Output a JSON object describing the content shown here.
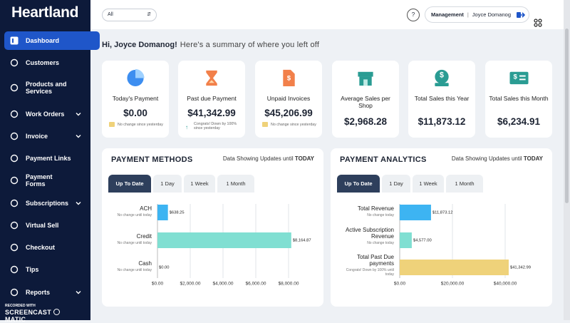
{
  "sidebar": {
    "brand": "Heartland",
    "items": [
      "Dashboard",
      "Customers",
      "Products and Services",
      "Work Orders",
      "Invoice",
      "Payment Links",
      "Payment Forms",
      "Subscriptions",
      "Virtual Sell",
      "Checkout",
      "Tips",
      "Reports"
    ]
  },
  "watermark": {
    "top": "RECORDED WITH",
    "name": "SCREENCAST",
    "suffix": "MATIC"
  },
  "header": {
    "filter": "All",
    "help": "?",
    "role": "Management",
    "user": "Joyce Domanog"
  },
  "greeting": {
    "name": "Hi, Joyce Domanog!",
    "text": "Here's a summary of where you left off"
  },
  "cards": [
    {
      "title": "Today's Payment",
      "value": "$0.00",
      "note": "No change since yesterday"
    },
    {
      "title": "Past due Payment",
      "value": "$41,342.99",
      "note": "Congrats! Down by 100% since yesterday"
    },
    {
      "title": "Unpaid Invoices",
      "value": "$45,206.99",
      "note": "No change since yesterday"
    },
    {
      "title": "Average Sales per Shop",
      "value": "$2,968.28"
    },
    {
      "title": "Total Sales this Year",
      "value": "$11,873.12"
    },
    {
      "title": "Total Sales this Month",
      "value": "$6,234.91"
    }
  ],
  "panels": [
    {
      "title": "PAYMENT METHODS",
      "update": "Data Showing Updates until",
      "update_em": "TODAY",
      "tabs": [
        "Up To Date",
        "1 Day",
        "1 Week",
        "1 Month"
      ],
      "chart_data": {
        "type": "bar",
        "orientation": "horizontal",
        "categories": [
          "ACH",
          "Credit",
          "Cash"
        ],
        "notes": [
          "No change until today",
          "No change until today",
          "No change until today"
        ],
        "values": [
          638.25,
          8164.87,
          0
        ],
        "value_labels": [
          "$638.25",
          "$8,164.87",
          "$0.00"
        ],
        "colors": [
          "#3db4f2",
          "#80dfd2",
          "#80dfd2"
        ],
        "xlim": [
          0,
          8200
        ],
        "xticks": [
          {
            "value": 0,
            "label": "$0.00"
          },
          {
            "value": 2000,
            "label": "$2,000.00"
          },
          {
            "value": 4000,
            "label": "$4,000.00"
          },
          {
            "value": 6000,
            "label": "$6,000.00"
          },
          {
            "value": 8000,
            "label": "$8,000.00"
          }
        ],
        "grid": true
      }
    },
    {
      "title": "PAYMENT ANALYTICS",
      "update": "Data Showing Updates until",
      "update_em": "TODAY",
      "tabs": [
        "Up To Date",
        "1 Day",
        "1 Week",
        "1 Month"
      ],
      "chart_data": {
        "type": "bar",
        "orientation": "horizontal",
        "categories": [
          "Total Revenue",
          "Active Subscription Revenue",
          "Total Past Due payments"
        ],
        "notes": [
          "No change today",
          "No change today",
          "Congrats! Down by 100% until today"
        ],
        "values": [
          11873.12,
          4577,
          41342.99
        ],
        "value_labels": [
          "$11,873.12",
          "$4,577.00",
          "$41,342.99"
        ],
        "colors": [
          "#3db4f2",
          "#80dfd2",
          "#efd27a"
        ],
        "xlim": [
          0,
          42000
        ],
        "xticks": [
          {
            "value": 0,
            "label": "$0.00"
          },
          {
            "value": 20000,
            "label": "$20,000.00"
          },
          {
            "value": 40000,
            "label": "$40,000.00"
          }
        ],
        "grid": true
      }
    }
  ]
}
